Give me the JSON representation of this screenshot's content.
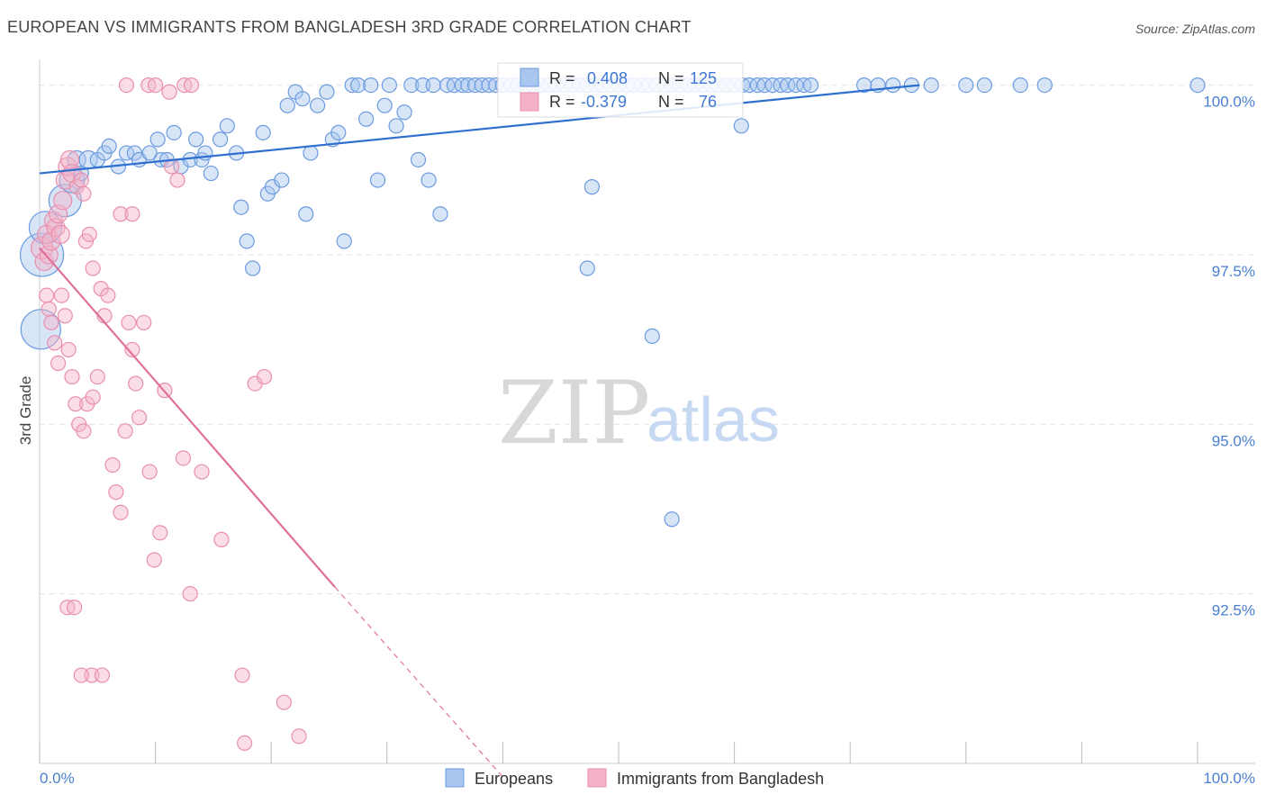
{
  "title": "EUROPEAN VS IMMIGRANTS FROM BANGLADESH 3RD GRADE CORRELATION CHART",
  "source": "Source: ZipAtlas.com",
  "watermark": {
    "zip": "ZIP",
    "atlas": "atlas"
  },
  "colors": {
    "blue_fill": "#a9c6ee",
    "blue_stroke": "#6b9be0",
    "blue_line": "#2f6fcf",
    "pink_fill": "#f5b3c8",
    "pink_stroke": "#e98fae",
    "pink_line": "#e0709a",
    "grid": "#e3e3e3",
    "tick_text": "#4a7fd0"
  },
  "legend_stats": [
    {
      "r_label": "R =",
      "r_value": "0.408",
      "n_label": "N =",
      "n_value": "125"
    },
    {
      "r_label": "R =",
      "r_value": "-0.379",
      "n_label": "N =",
      "n_value": "76"
    }
  ],
  "chart_data": {
    "type": "scatter",
    "title": "EUROPEAN VS IMMIGRANTS FROM BANGLADESH 3RD GRADE CORRELATION CHART",
    "xlabel": "",
    "ylabel": "3rd Grade",
    "xlim": [
      0,
      100
    ],
    "ylim": [
      90.0,
      100.3
    ],
    "x_tick_labels": [
      "0.0%",
      "100.0%"
    ],
    "y_ticks": [
      92.5,
      95.0,
      97.5,
      100.0
    ],
    "y_tick_labels": [
      "92.5%",
      "95.0%",
      "97.5%",
      "100.0%"
    ],
    "grid": true,
    "legend_position": "bottom-center",
    "series": [
      {
        "name": "Europeans",
        "color": "#6b9be0",
        "trend": {
          "x": [
            0,
            76
          ],
          "y": [
            98.7,
            100.0
          ]
        },
        "points": [
          [
            0.1,
            96.4,
            22
          ],
          [
            0.2,
            97.5,
            24
          ],
          [
            0.5,
            97.9,
            18
          ],
          [
            2.2,
            98.3,
            18
          ],
          [
            2.8,
            98.6,
            14
          ],
          [
            3.2,
            98.9,
            10
          ],
          [
            3.6,
            98.7,
            8
          ],
          [
            4.2,
            98.9,
            10
          ],
          [
            5.0,
            98.9,
            8
          ],
          [
            5.6,
            99.0,
            8
          ],
          [
            6.0,
            99.1,
            8
          ],
          [
            6.8,
            98.8,
            8
          ],
          [
            7.5,
            99.0,
            8
          ],
          [
            8.2,
            99.0,
            8
          ],
          [
            8.6,
            98.9,
            8
          ],
          [
            9.5,
            99.0,
            8
          ],
          [
            10.2,
            99.2,
            8
          ],
          [
            10.5,
            98.9,
            8
          ],
          [
            11.0,
            98.9,
            8
          ],
          [
            11.6,
            99.3,
            8
          ],
          [
            12.2,
            98.8,
            8
          ],
          [
            13.0,
            98.9,
            8
          ],
          [
            13.5,
            99.2,
            8
          ],
          [
            14.0,
            98.9,
            8
          ],
          [
            14.3,
            99.0,
            8
          ],
          [
            14.8,
            98.7,
            8
          ],
          [
            15.6,
            99.2,
            8
          ],
          [
            16.2,
            99.4,
            8
          ],
          [
            17.0,
            99.0,
            8
          ],
          [
            17.4,
            98.2,
            8
          ],
          [
            17.9,
            97.7,
            8
          ],
          [
            18.4,
            97.3,
            8
          ],
          [
            19.3,
            99.3,
            8
          ],
          [
            19.7,
            98.4,
            8
          ],
          [
            20.1,
            98.5,
            8
          ],
          [
            20.9,
            98.6,
            8
          ],
          [
            21.4,
            99.7,
            8
          ],
          [
            22.1,
            99.9,
            8
          ],
          [
            22.7,
            99.8,
            8
          ],
          [
            23.0,
            98.1,
            8
          ],
          [
            23.4,
            99.0,
            8
          ],
          [
            24.0,
            99.7,
            8
          ],
          [
            24.8,
            99.9,
            8
          ],
          [
            25.3,
            99.2,
            8
          ],
          [
            25.8,
            99.3,
            8
          ],
          [
            26.3,
            97.7,
            8
          ],
          [
            27.0,
            100.0,
            8
          ],
          [
            27.5,
            100.0,
            8
          ],
          [
            28.2,
            99.5,
            8
          ],
          [
            28.6,
            100.0,
            8
          ],
          [
            29.2,
            98.6,
            8
          ],
          [
            29.8,
            99.7,
            8
          ],
          [
            30.2,
            100.0,
            8
          ],
          [
            30.8,
            99.4,
            8
          ],
          [
            31.5,
            99.6,
            8
          ],
          [
            32.1,
            100.0,
            8
          ],
          [
            32.7,
            98.9,
            8
          ],
          [
            33.1,
            100.0,
            8
          ],
          [
            33.6,
            98.6,
            8
          ],
          [
            34.0,
            100.0,
            8
          ],
          [
            34.6,
            98.1,
            8
          ],
          [
            35.2,
            100.0,
            8
          ],
          [
            35.8,
            100.0,
            8
          ],
          [
            36.5,
            100.0,
            8
          ],
          [
            37.0,
            100.0,
            8
          ],
          [
            37.6,
            100.0,
            8
          ],
          [
            38.2,
            100.0,
            8
          ],
          [
            38.8,
            100.0,
            8
          ],
          [
            39.4,
            100.0,
            8
          ],
          [
            40.0,
            100.0,
            8
          ],
          [
            40.7,
            100.0,
            8
          ],
          [
            41.3,
            100.0,
            8
          ],
          [
            42.0,
            100.0,
            8
          ],
          [
            42.6,
            100.0,
            8
          ],
          [
            43.3,
            100.0,
            8
          ],
          [
            44.0,
            100.0,
            8
          ],
          [
            44.6,
            100.0,
            8
          ],
          [
            45.3,
            100.0,
            8
          ],
          [
            46.0,
            100.0,
            8
          ],
          [
            46.6,
            100.0,
            8
          ],
          [
            47.3,
            100.0,
            8
          ],
          [
            48.0,
            100.0,
            8
          ],
          [
            48.6,
            100.0,
            8
          ],
          [
            49.3,
            100.0,
            8
          ],
          [
            50.0,
            100.0,
            8
          ],
          [
            50.7,
            100.0,
            8
          ],
          [
            51.3,
            100.0,
            8
          ],
          [
            52.0,
            100.0,
            8
          ],
          [
            52.6,
            100.0,
            8
          ],
          [
            53.3,
            100.0,
            8
          ],
          [
            54.0,
            100.0,
            8
          ],
          [
            54.6,
            100.0,
            8
          ],
          [
            55.3,
            100.0,
            8
          ],
          [
            56.0,
            100.0,
            8
          ],
          [
            56.6,
            100.0,
            8
          ],
          [
            57.3,
            100.0,
            8
          ],
          [
            58.0,
            100.0,
            8
          ],
          [
            58.6,
            100.0,
            8
          ],
          [
            59.3,
            100.0,
            8
          ],
          [
            60.0,
            100.0,
            8
          ],
          [
            60.7,
            100.0,
            8
          ],
          [
            61.3,
            100.0,
            8
          ],
          [
            62.0,
            100.0,
            8
          ],
          [
            62.6,
            100.0,
            8
          ],
          [
            63.3,
            100.0,
            8
          ],
          [
            64.0,
            100.0,
            8
          ],
          [
            64.6,
            100.0,
            8
          ],
          [
            65.3,
            100.0,
            8
          ],
          [
            66.0,
            100.0,
            8
          ],
          [
            66.6,
            100.0,
            8
          ],
          [
            71.2,
            100.0,
            8
          ],
          [
            72.4,
            100.0,
            8
          ],
          [
            73.7,
            100.0,
            8
          ],
          [
            75.3,
            100.0,
            8
          ],
          [
            77.0,
            100.0,
            8
          ],
          [
            80.0,
            100.0,
            8
          ],
          [
            81.6,
            100.0,
            8
          ],
          [
            84.7,
            100.0,
            8
          ],
          [
            86.8,
            100.0,
            8
          ],
          [
            100.0,
            100.0,
            8
          ],
          [
            47.7,
            98.5,
            8
          ],
          [
            47.3,
            97.3,
            8
          ],
          [
            52.9,
            96.3,
            8
          ],
          [
            54.6,
            93.6,
            8
          ],
          [
            60.6,
            99.4,
            8
          ]
        ]
      },
      {
        "name": "Immigrants from Bangladesh",
        "color": "#e98fae",
        "trend": {
          "x": [
            0,
            25.5
          ],
          "y": [
            97.6,
            92.6
          ]
        },
        "trend_ext": {
          "x": [
            25.5,
            40
          ],
          "y": [
            92.6,
            89.8
          ]
        },
        "points": [
          [
            0.2,
            97.6,
            12
          ],
          [
            0.4,
            97.4,
            10
          ],
          [
            0.6,
            97.8,
            10
          ],
          [
            0.8,
            97.5,
            10
          ],
          [
            1.0,
            97.7,
            10
          ],
          [
            1.2,
            98.0,
            10
          ],
          [
            1.4,
            97.9,
            10
          ],
          [
            1.6,
            98.1,
            10
          ],
          [
            1.8,
            97.8,
            10
          ],
          [
            2.0,
            98.3,
            10
          ],
          [
            2.2,
            98.6,
            10
          ],
          [
            2.4,
            98.8,
            10
          ],
          [
            2.6,
            98.9,
            10
          ],
          [
            2.8,
            98.7,
            10
          ],
          [
            3.2,
            98.5,
            8
          ],
          [
            3.6,
            98.6,
            8
          ],
          [
            3.8,
            98.4,
            8
          ],
          [
            4.0,
            97.7,
            8
          ],
          [
            4.3,
            97.8,
            8
          ],
          [
            4.6,
            97.3,
            8
          ],
          [
            0.6,
            96.9,
            8
          ],
          [
            0.8,
            96.7,
            8
          ],
          [
            1.0,
            96.5,
            8
          ],
          [
            1.3,
            96.2,
            8
          ],
          [
            1.6,
            95.9,
            8
          ],
          [
            1.9,
            96.9,
            8
          ],
          [
            2.2,
            96.6,
            8
          ],
          [
            2.5,
            96.1,
            8
          ],
          [
            2.8,
            95.7,
            8
          ],
          [
            3.1,
            95.3,
            8
          ],
          [
            3.4,
            95.0,
            8
          ],
          [
            3.8,
            94.9,
            8
          ],
          [
            4.1,
            95.3,
            8
          ],
          [
            4.6,
            95.4,
            8
          ],
          [
            5.0,
            95.7,
            8
          ],
          [
            5.3,
            97.0,
            8
          ],
          [
            5.6,
            96.6,
            8
          ],
          [
            5.9,
            96.9,
            8
          ],
          [
            6.3,
            94.4,
            8
          ],
          [
            6.6,
            94.0,
            8
          ],
          [
            7.0,
            93.7,
            8
          ],
          [
            7.4,
            94.9,
            8
          ],
          [
            7.7,
            96.5,
            8
          ],
          [
            8.0,
            96.1,
            8
          ],
          [
            8.3,
            95.6,
            8
          ],
          [
            8.6,
            95.1,
            8
          ],
          [
            9.0,
            96.5,
            8
          ],
          [
            9.5,
            94.3,
            8
          ],
          [
            9.9,
            93.0,
            8
          ],
          [
            10.4,
            93.4,
            8
          ],
          [
            10.8,
            95.5,
            8
          ],
          [
            11.4,
            98.8,
            8
          ],
          [
            11.9,
            98.6,
            8
          ],
          [
            12.4,
            94.5,
            8
          ],
          [
            13.0,
            92.5,
            8
          ],
          [
            14.0,
            94.3,
            8
          ],
          [
            15.7,
            93.3,
            8
          ],
          [
            17.5,
            91.3,
            8
          ],
          [
            18.6,
            95.6,
            8
          ],
          [
            19.4,
            95.7,
            8
          ],
          [
            21.1,
            90.9,
            8
          ],
          [
            22.4,
            90.4,
            8
          ],
          [
            17.7,
            90.3,
            8
          ],
          [
            4.5,
            91.3,
            8
          ],
          [
            5.4,
            91.3,
            8
          ],
          [
            2.4,
            92.3,
            8
          ],
          [
            3.0,
            92.3,
            8
          ],
          [
            3.6,
            91.3,
            8
          ],
          [
            7.5,
            100.0,
            8
          ],
          [
            9.4,
            100.0,
            8
          ],
          [
            10.0,
            100.0,
            8
          ],
          [
            11.2,
            99.9,
            8
          ],
          [
            12.5,
            100.0,
            8
          ],
          [
            13.1,
            100.0,
            8
          ],
          [
            7.0,
            98.1,
            8
          ],
          [
            8.0,
            98.1,
            8
          ]
        ]
      }
    ]
  },
  "legend": [
    {
      "label": "Europeans",
      "color_key": "blue"
    },
    {
      "label": "Immigrants from Bangladesh",
      "color_key": "pink"
    }
  ]
}
